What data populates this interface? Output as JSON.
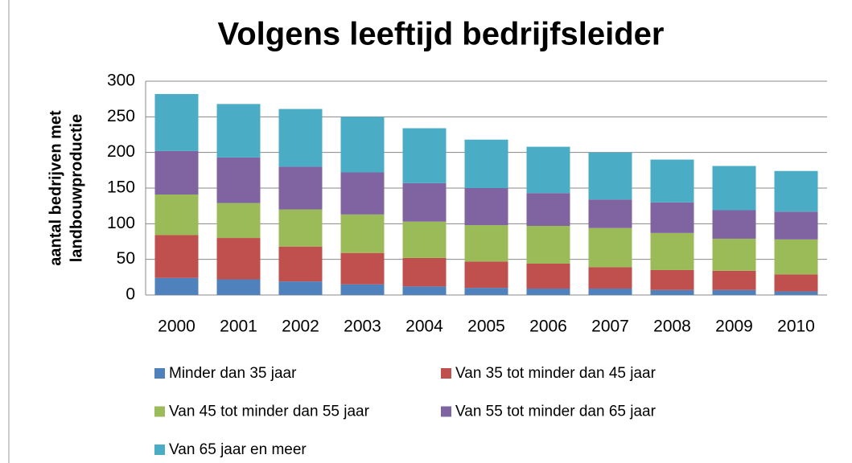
{
  "chart_data": {
    "type": "stacked_bar",
    "title": "Volgens leeftijd bedrijfsleider",
    "ylabel": [
      "aantal bedrijven met",
      "landbouwproductie"
    ],
    "categories": [
      "2000",
      "2001",
      "2002",
      "2003",
      "2004",
      "2005",
      "2006",
      "2007",
      "2008",
      "2009",
      "2010"
    ],
    "series": [
      {
        "name": "Minder dan 35 jaar",
        "color": "#4f81bd",
        "values": [
          24,
          22,
          19,
          15,
          12,
          10,
          9,
          9,
          7,
          7,
          5
        ]
      },
      {
        "name": "Van 35 tot minder dan 45 jaar",
        "color": "#c0504d",
        "values": [
          60,
          58,
          49,
          44,
          40,
          37,
          35,
          30,
          28,
          27,
          24
        ]
      },
      {
        "name": "Van 45 tot minder dan 55 jaar",
        "color": "#9bbb59",
        "values": [
          57,
          49,
          52,
          54,
          51,
          51,
          53,
          55,
          52,
          45,
          49
        ]
      },
      {
        "name": "Van 55 tot minder dan 65 jaar",
        "color": "#8064a2",
        "values": [
          61,
          64,
          60,
          59,
          54,
          52,
          46,
          40,
          43,
          40,
          39
        ]
      },
      {
        "name": "Van 65 jaar en meer",
        "color": "#4bacc6",
        "values": [
          80,
          75,
          81,
          78,
          77,
          68,
          65,
          66,
          60,
          62,
          57
        ]
      }
    ],
    "ylim": [
      0,
      300
    ],
    "yticks": [
      0,
      50,
      100,
      150,
      200,
      250,
      300
    ],
    "grid": true
  }
}
